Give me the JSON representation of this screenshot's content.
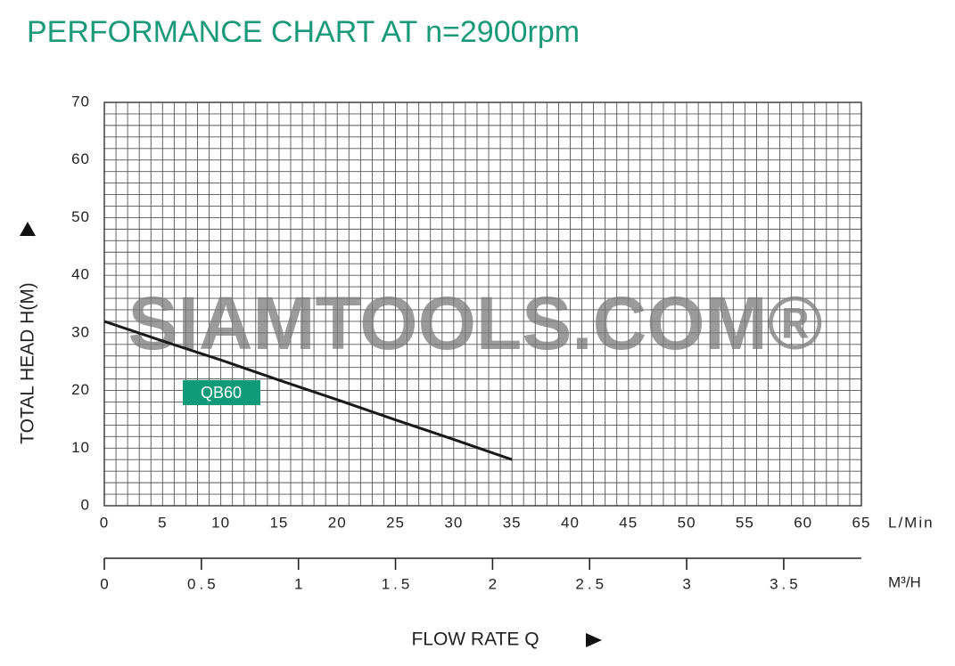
{
  "chart_data": {
    "type": "line",
    "title": "PERFORMANCE CHART AT n=2900rpm",
    "watermark": "SIAMTOOLS.COM®",
    "y_label": "TOTAL HEAD H(M)",
    "x_label": "FLOW RATE Q",
    "x_unit": "L/Min",
    "x2_unit": "M³/H",
    "x": [
      0,
      5,
      10,
      15,
      20,
      25,
      30,
      35
    ],
    "series": [
      {
        "name": "QB60",
        "color": "#1a1a1a",
        "label_color": "#0f9a78",
        "values": [
          32,
          28.6,
          25.3,
          21.8,
          18.4,
          14.9,
          11.5,
          8
        ]
      }
    ],
    "xlim": [
      0,
      65
    ],
    "xticks": [
      0,
      5,
      10,
      15,
      20,
      25,
      30,
      35,
      40,
      45,
      50,
      55,
      60,
      65
    ],
    "ylim": [
      0,
      70
    ],
    "yticks": [
      0,
      10,
      20,
      30,
      40,
      50,
      60,
      70
    ],
    "x2lim": [
      0,
      3.9
    ],
    "x2ticks": [
      0,
      0.5,
      1,
      1.5,
      2,
      2.5,
      3,
      3.5
    ],
    "grid": true,
    "grid_step": {
      "x": 1,
      "y": 2
    }
  }
}
